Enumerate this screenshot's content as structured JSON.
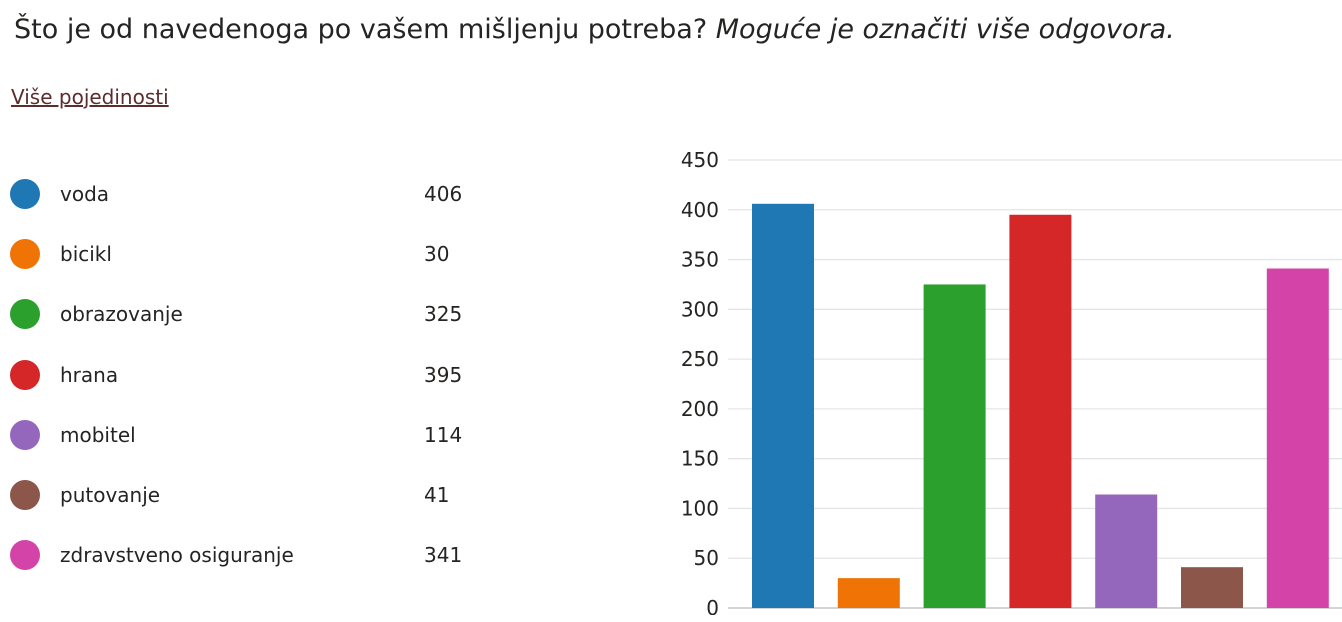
{
  "question": {
    "text": "Što je od navedenoga po vašem mišljenju potreba?",
    "hint": "Moguće je označiti više odgovora."
  },
  "details_link": "Više pojedinosti",
  "chart_data": {
    "type": "bar",
    "categories": [
      "voda",
      "bicikl",
      "obrazovanje",
      "hrana",
      "mobitel",
      "putovanje",
      "zdravstveno osiguranje"
    ],
    "values": [
      406,
      30,
      325,
      395,
      114,
      41,
      341
    ],
    "colors": [
      "#1f77b4",
      "#ef7405",
      "#2ca02c",
      "#d62728",
      "#9467bd",
      "#8c564b",
      "#d444a8"
    ],
    "ylim": [
      0,
      450
    ],
    "yticks": [
      "0",
      "50",
      "100",
      "150",
      "200",
      "250",
      "300",
      "350",
      "400",
      "450"
    ],
    "grid": true,
    "legend": "left"
  }
}
